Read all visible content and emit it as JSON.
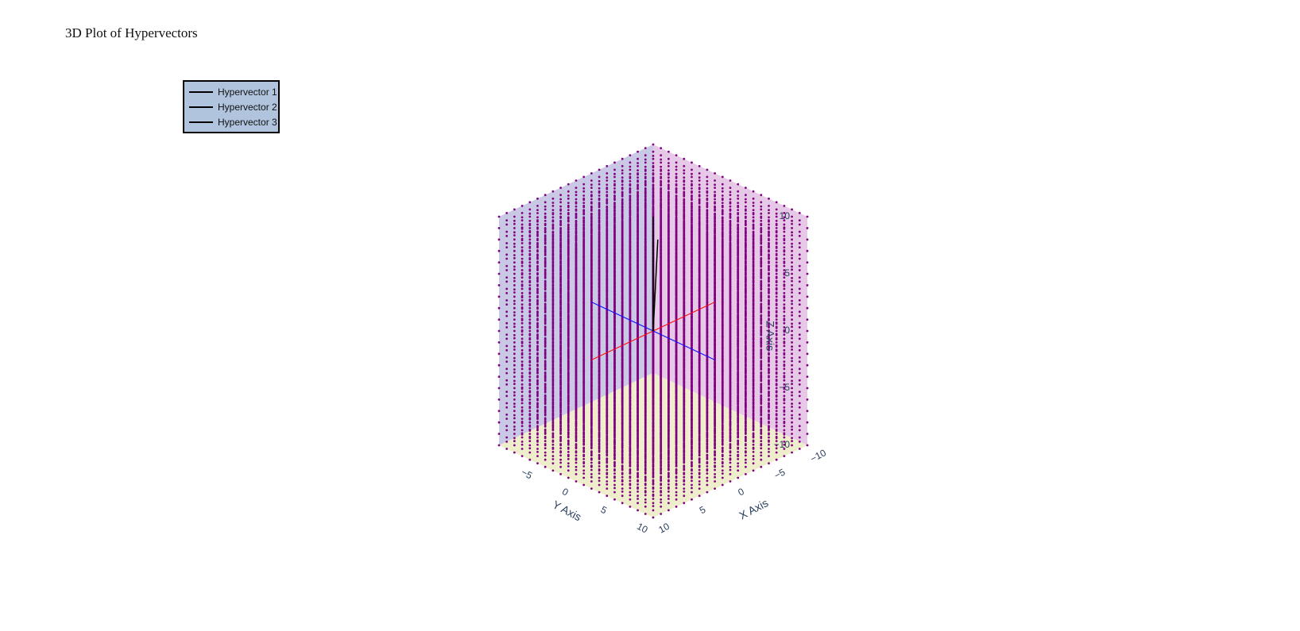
{
  "chart_data": {
    "type": "scatter3d",
    "title": "3D Plot of Hypervectors",
    "axes": {
      "x": {
        "title": "X Axis",
        "range": [
          -10,
          10
        ],
        "ticks": [
          "−10",
          "−5",
          "0",
          "5",
          "10"
        ]
      },
      "y": {
        "title": "Y Axis",
        "range": [
          -10,
          10
        ],
        "ticks": [
          "−5",
          "0",
          "5",
          "10"
        ]
      },
      "z": {
        "title": "Z Axis",
        "range": [
          -10,
          10
        ],
        "ticks": [
          "10",
          "5",
          "0",
          "−5",
          "−10"
        ]
      }
    },
    "point_grid": {
      "min": -10,
      "max": 10,
      "step": 1,
      "color": "#800080"
    },
    "legend": {
      "placement": "top-left",
      "background": "#b0c4de"
    },
    "series": [
      {
        "name": "Hypervector 1",
        "color": "#000000",
        "from": [
          0,
          0,
          0
        ],
        "to": [
          0,
          0,
          10
        ]
      },
      {
        "name": "Hypervector 2",
        "color": "#000000",
        "from": [
          0,
          0,
          0
        ],
        "to": [
          0.5,
          0.5,
          9
        ]
      },
      {
        "name": "Hypervector 3",
        "color": "#000000",
        "from": [
          0,
          0,
          0
        ],
        "to": [
          -0.3,
          0.3,
          8
        ]
      }
    ],
    "guide_lines": [
      {
        "color": "#ff0000",
        "from": [
          -8,
          0,
          0
        ],
        "to": [
          8,
          0,
          0
        ]
      },
      {
        "color": "#0000ff",
        "from": [
          0,
          -8,
          0
        ],
        "to": [
          0,
          8,
          0
        ]
      }
    ],
    "walls": {
      "left": "#e6c9e6",
      "right": "#c9c9e6",
      "floor": "#eeeecc"
    }
  }
}
